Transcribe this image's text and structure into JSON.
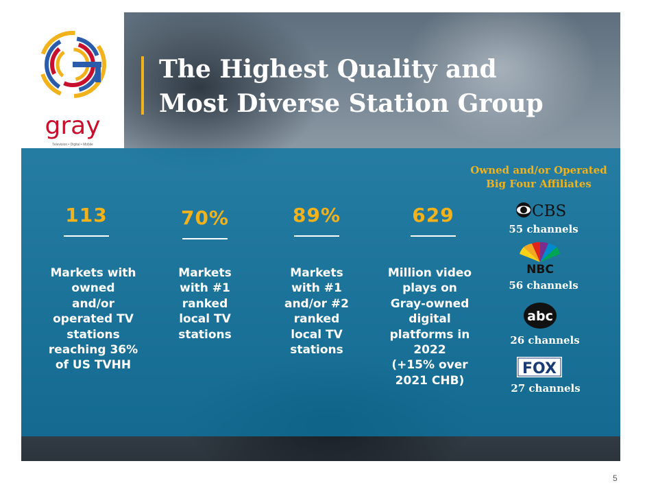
{
  "logo": {
    "wordmark": "gray",
    "tagline": "Television • Digital • Mobile"
  },
  "title_line1": "The Highest Quality and",
  "title_line2": "Most Diverse Station Group",
  "stats": [
    {
      "value": "113",
      "lines": [
        "Markets with",
        "owned",
        "and/or",
        "operated TV",
        "stations",
        "reaching 36%",
        "of US TVHH"
      ]
    },
    {
      "value": "70%",
      "lines": [
        "Markets",
        "with #1",
        "ranked",
        "local TV",
        "stations"
      ]
    },
    {
      "value": "89%",
      "lines": [
        "Markets",
        "with #1",
        "and/or #2",
        "ranked",
        "local TV",
        "stations"
      ]
    },
    {
      "value": "629",
      "lines": [
        "Million video",
        "plays on",
        "Gray-owned",
        "digital",
        "platforms in",
        "2022",
        "(+15% over",
        "2021 CHB)"
      ]
    }
  ],
  "affiliates": {
    "heading_line1": "Owned and/or Operated",
    "heading_line2": "Big Four Affiliates",
    "networks": [
      {
        "logo": "CBS",
        "label": "55 channels",
        "icon": "cbs-eye-icon"
      },
      {
        "logo": "NBC",
        "label": "56 channels",
        "icon": "nbc-peacock-icon"
      },
      {
        "logo": "abc",
        "label": "26 channels",
        "icon": "abc-circle-icon"
      },
      {
        "logo": "FOX",
        "label": "27 channels",
        "icon": "fox-box-icon"
      }
    ]
  },
  "colors": {
    "accent": "#f2b21b",
    "panel": "#0d76a3",
    "brand_red": "#c8102e"
  },
  "page_number": "5"
}
